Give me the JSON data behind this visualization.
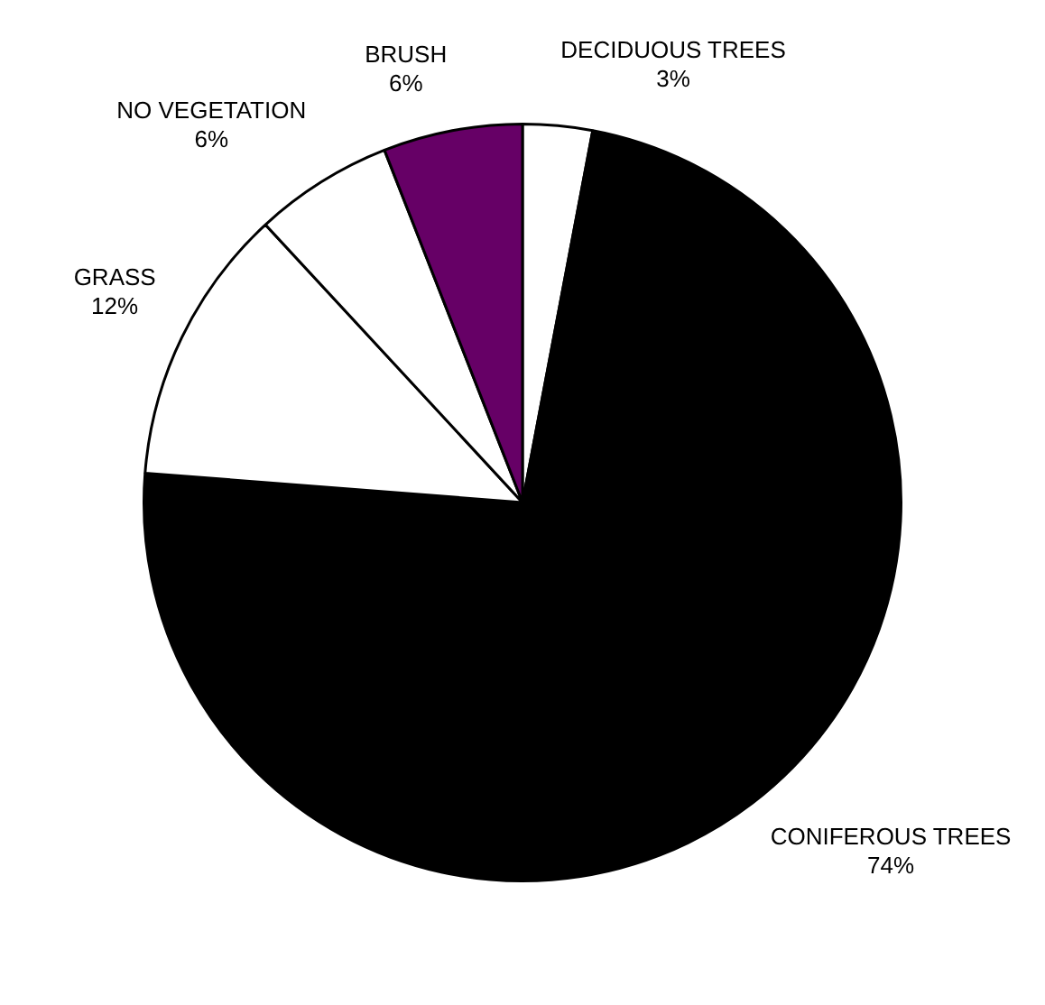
{
  "chart_data": {
    "type": "pie",
    "categories": [
      "DECIDUOUS TREES",
      "CONIFEROUS TREES",
      "GRASS",
      "NO VEGETATION",
      "BRUSH"
    ],
    "values": [
      3,
      74,
      12,
      6,
      6
    ],
    "value_labels": [
      "3%",
      "74%",
      "12%",
      "6%",
      "6%"
    ],
    "colors": [
      "#ffffff",
      "#000000",
      "#ffffff",
      "#ffffff",
      "#660066"
    ]
  }
}
